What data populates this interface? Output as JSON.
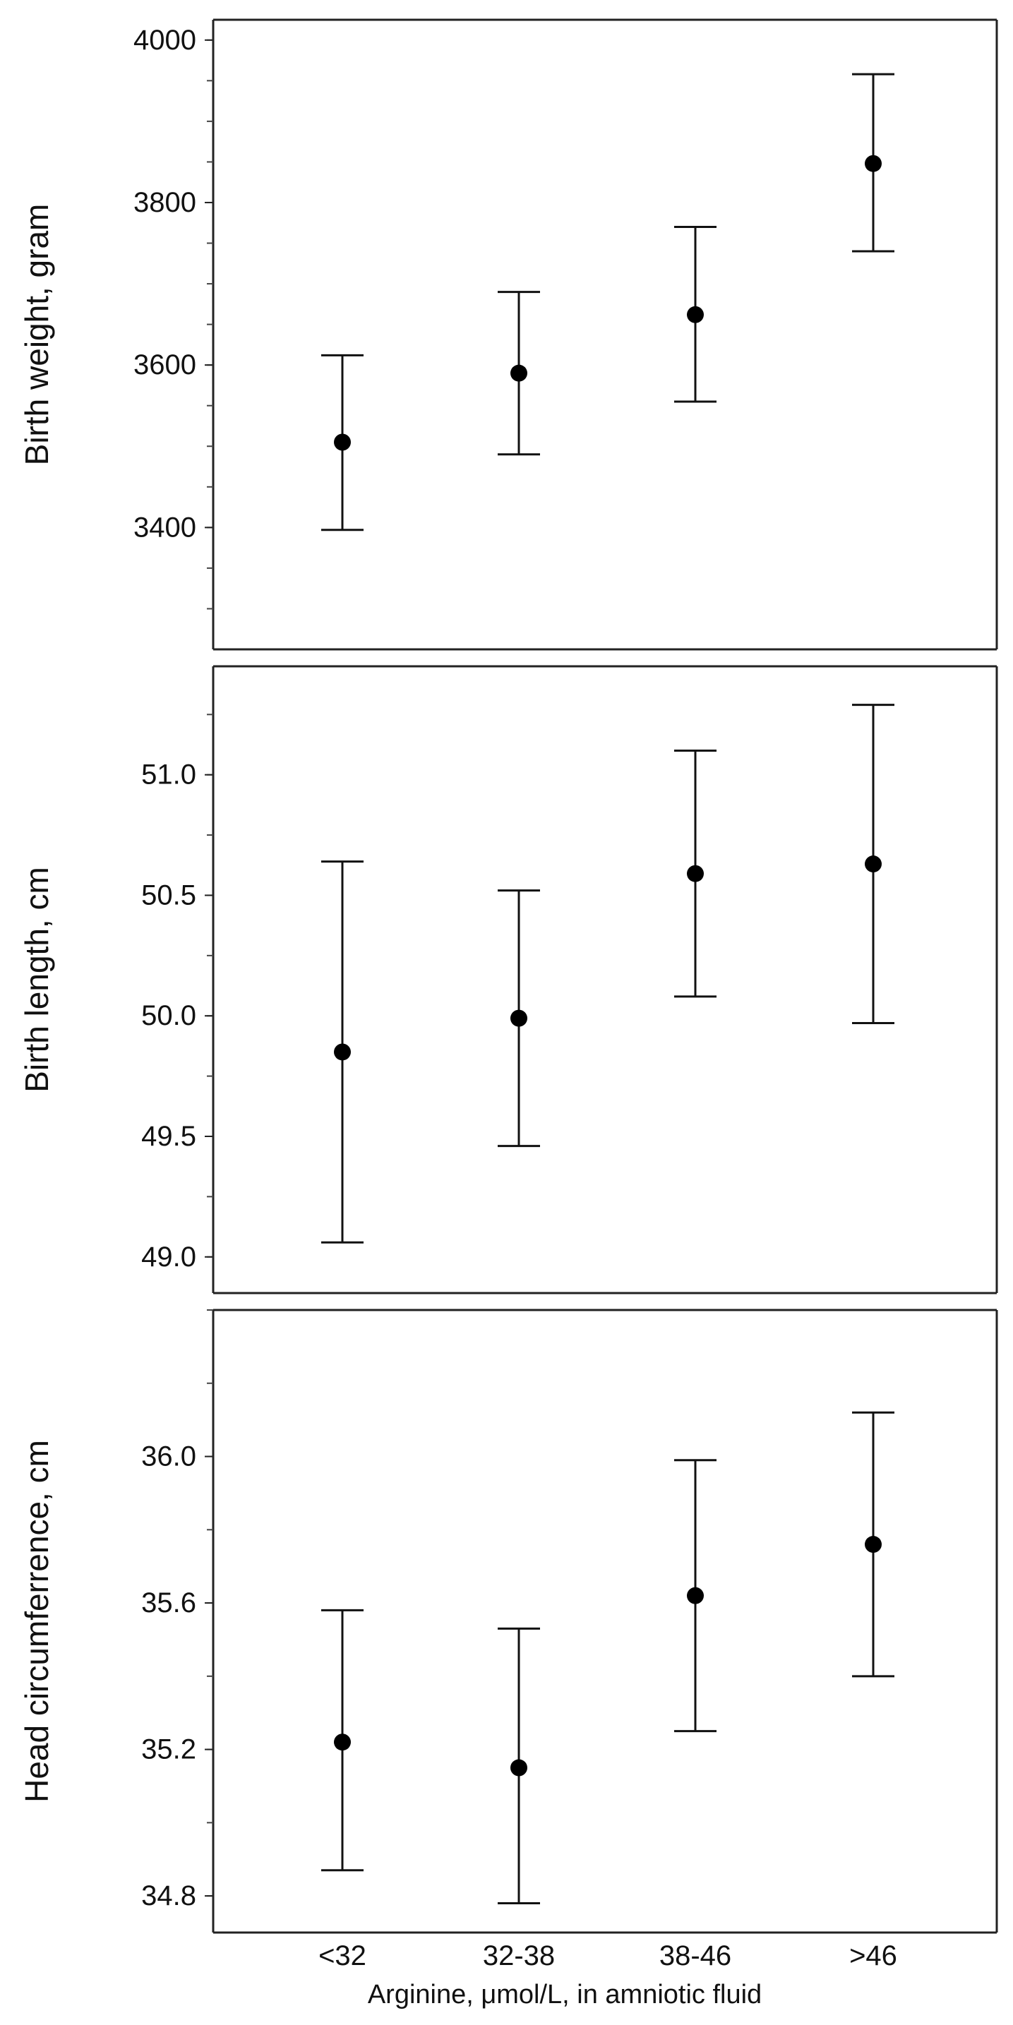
{
  "chart_data": [
    {
      "type": "scatter",
      "categories": [
        "<32",
        "32-38",
        "38-46",
        ">46"
      ],
      "ylabel": "Birth weight, gram",
      "ylim": [
        3250,
        4025
      ],
      "yticks": [
        3400,
        3600,
        3800,
        4000
      ],
      "ytick_labels": [
        "3400",
        "3600",
        "3800",
        "4000"
      ],
      "series": [
        {
          "values": [
            3505,
            3590,
            3662,
            3848
          ],
          "lower": [
            3397,
            3490,
            3555,
            3740
          ],
          "upper": [
            3612,
            3690,
            3770,
            3958
          ]
        }
      ],
      "grid": false
    },
    {
      "type": "scatter",
      "categories": [
        "<32",
        "32-38",
        "38-46",
        ">46"
      ],
      "ylabel": "Birth length, cm",
      "ylim": [
        48.85,
        51.45
      ],
      "yticks": [
        49.0,
        49.5,
        50.0,
        50.5,
        51.0
      ],
      "ytick_labels": [
        "49.0",
        "49.5",
        "50.0",
        "50.5",
        "51.0"
      ],
      "series": [
        {
          "values": [
            49.85,
            49.99,
            50.59,
            50.63
          ],
          "lower": [
            49.06,
            49.46,
            50.08,
            49.97
          ],
          "upper": [
            50.64,
            50.52,
            51.1,
            51.29
          ]
        }
      ],
      "grid": false
    },
    {
      "type": "scatter",
      "categories": [
        "<32",
        "32-38",
        "38-46",
        ">46"
      ],
      "ylabel": "Head circumferrence, cm",
      "xlabel": "Arginine, μmol/L, in amniotic fluid",
      "ylim": [
        34.7,
        36.4
      ],
      "yticks": [
        34.8,
        35.2,
        35.6,
        36.0
      ],
      "ytick_labels": [
        "34.8",
        "35.2",
        "35.6",
        "36.0"
      ],
      "series": [
        {
          "values": [
            35.22,
            35.15,
            35.62,
            35.76
          ],
          "lower": [
            34.87,
            34.78,
            35.25,
            35.4
          ],
          "upper": [
            35.58,
            35.53,
            35.99,
            36.12
          ]
        }
      ],
      "grid": false
    }
  ]
}
